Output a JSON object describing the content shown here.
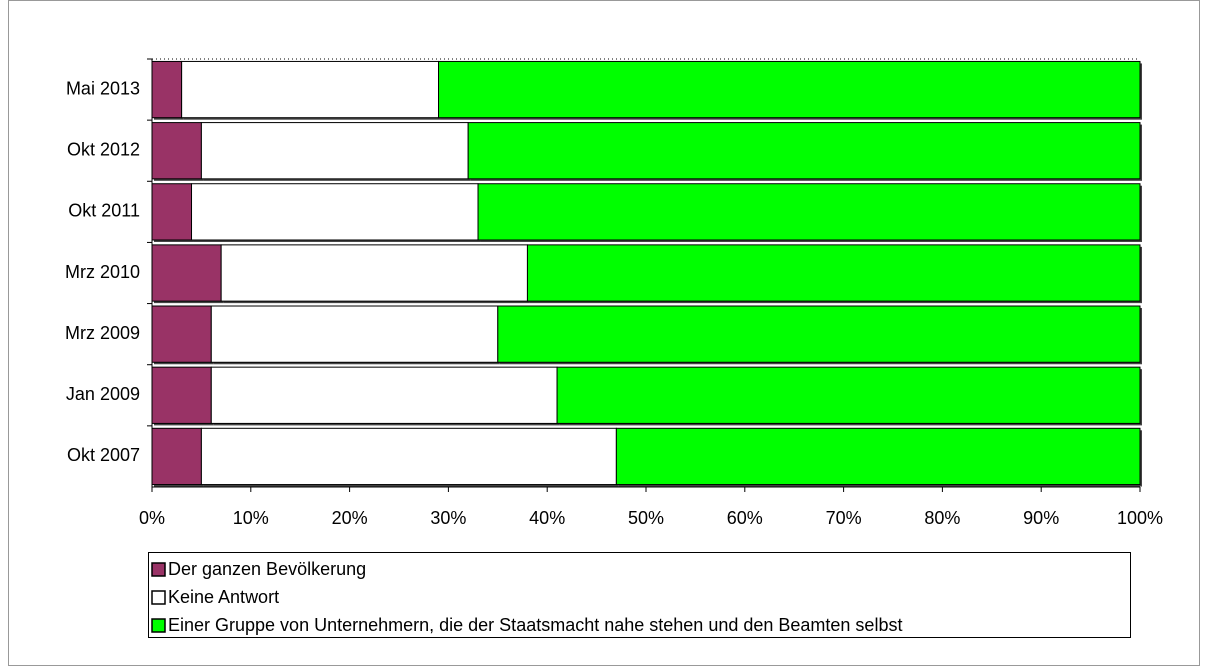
{
  "chart_data": {
    "type": "bar",
    "orientation": "horizontal",
    "stacked": true,
    "categories": [
      "Mai 2013",
      "Okt 2012",
      "Okt 2011",
      "Mrz 2010",
      "Mrz 2009",
      "Jan 2009",
      "Okt 2007"
    ],
    "series": [
      {
        "name": "Der ganzen Bevölkerung",
        "color": "#993366",
        "values": [
          3,
          5,
          4,
          7,
          6,
          6,
          5
        ]
      },
      {
        "name": "Keine Antwort",
        "color": "#ffffff",
        "values": [
          26,
          27,
          29,
          31,
          29,
          35,
          42
        ]
      },
      {
        "name": "Einer Gruppe von Unternehmern, die der Staatsmacht nahe stehen und den Beamten selbst",
        "color": "#00ff00",
        "values": [
          71,
          68,
          67,
          62,
          65,
          59,
          53
        ]
      }
    ],
    "xlim": [
      0,
      100
    ],
    "xticks": [
      {
        "value": 0,
        "label": "0%"
      },
      {
        "value": 10,
        "label": "10%"
      },
      {
        "value": 20,
        "label": "20%"
      },
      {
        "value": 30,
        "label": "30%"
      },
      {
        "value": 40,
        "label": "40%"
      },
      {
        "value": 50,
        "label": "50%"
      },
      {
        "value": 60,
        "label": "60%"
      },
      {
        "value": 70,
        "label": "70%"
      },
      {
        "value": 80,
        "label": "80%"
      },
      {
        "value": 90,
        "label": "90%"
      },
      {
        "value": 100,
        "label": "100%"
      }
    ],
    "legend": "bottom"
  }
}
